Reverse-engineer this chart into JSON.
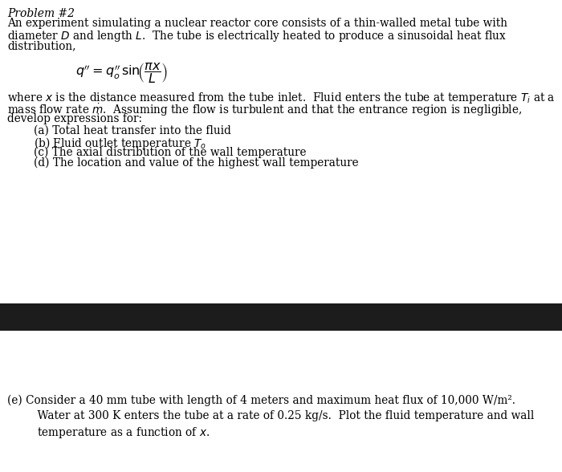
{
  "bg_color": "#ffffff",
  "dark_bar_color": "#1c1c1c",
  "title": "Problem #2",
  "para1_line1": "An experiment simulating a nuclear reactor core consists of a thin-walled metal tube with",
  "para1_line2": "diameter $D$ and length $L$.  The tube is electrically heated to produce a sinusoidal heat flux",
  "para1_line3": "distribution,",
  "equation": "$q'' = q_o''\\, \\mathrm{sin}\\!\\left(\\dfrac{\\pi x}{L}\\right)$",
  "para2_line1": "where $x$ is the distance measured from the tube inlet.  Fluid enters the tube at temperature $T_i$ at a",
  "para2_line2": "mass flow rate $\\dot{m}$.  Assuming the flow is turbulent and that the entrance region is negligible,",
  "para2_line3": "develop expressions for:",
  "item_a": "(a) Total heat transfer into the fluid",
  "item_b": "(b) Fluid outlet temperature $T_o$",
  "item_c": "(c) The axial distribution of the wall temperature",
  "item_d": "(d) The location and value of the highest wall temperature",
  "item_e_line1": "(e) Consider a 40 mm tube with length of 4 meters and maximum heat flux of 10,000 W/m².",
  "item_e_line2": "    Water at 300 K enters the tube at a rate of 0.25 kg/s.  Plot the fluid temperature and wall",
  "item_e_line3": "    temperature as a function of $x$.",
  "font_size_title": 10,
  "font_size_body": 9.8,
  "font_size_eq": 11.5
}
